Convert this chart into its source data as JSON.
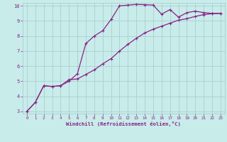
{
  "xlabel": "Windchill (Refroidissement éolien,°C)",
  "background_color": "#c8ecea",
  "grid_color": "#aacfcf",
  "line_color": "#882288",
  "xlim": [
    -0.5,
    23.5
  ],
  "ylim": [
    2.85,
    10.2
  ],
  "xticks": [
    0,
    1,
    2,
    3,
    4,
    5,
    6,
    7,
    8,
    9,
    10,
    11,
    12,
    13,
    14,
    15,
    16,
    17,
    18,
    19,
    20,
    21,
    22,
    23
  ],
  "yticks": [
    3,
    4,
    5,
    6,
    7,
    8,
    9,
    10
  ],
  "line1_x": [
    0,
    1,
    2,
    3,
    4,
    5,
    6,
    7,
    8,
    9,
    10,
    11,
    12,
    13,
    14,
    15,
    16,
    17,
    18,
    19,
    20,
    21,
    22,
    23
  ],
  "line1_y": [
    3.0,
    3.6,
    4.7,
    4.65,
    4.7,
    5.0,
    5.5,
    7.5,
    8.0,
    8.35,
    9.1,
    10.0,
    10.05,
    10.1,
    10.08,
    10.05,
    9.45,
    9.75,
    9.25,
    9.55,
    9.65,
    9.55,
    9.5,
    9.5
  ],
  "line2_x": [
    0,
    1,
    2,
    3,
    4,
    5,
    6,
    7,
    8,
    9,
    10,
    11,
    12,
    13,
    14,
    15,
    16,
    17,
    18,
    19,
    20,
    21,
    22,
    23
  ],
  "line2_y": [
    3.0,
    3.6,
    4.7,
    4.65,
    4.7,
    5.1,
    5.15,
    5.45,
    5.75,
    6.15,
    6.5,
    7.0,
    7.45,
    7.85,
    8.2,
    8.45,
    8.65,
    8.85,
    9.05,
    9.15,
    9.3,
    9.42,
    9.48,
    9.5
  ]
}
